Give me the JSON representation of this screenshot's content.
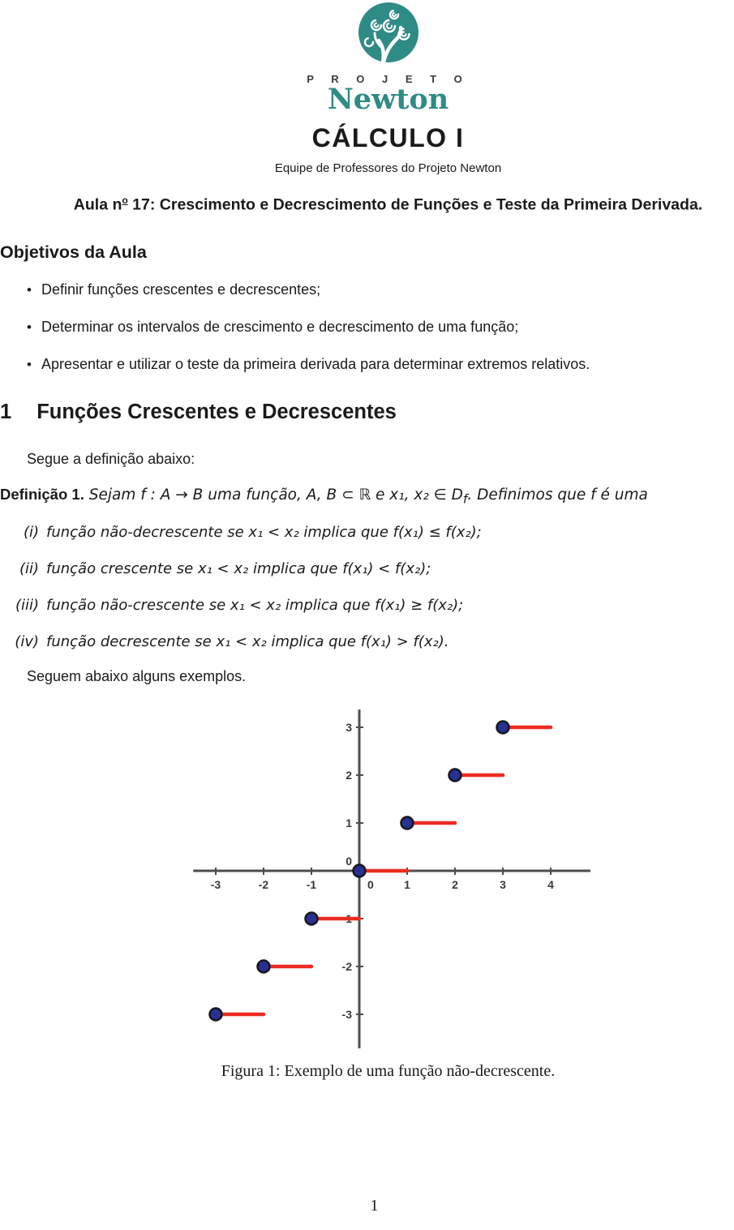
{
  "logo": {
    "projeto": "P R O J E T O",
    "newton": "Newton",
    "teal": "#2e8b85"
  },
  "header": {
    "title": "CÁLCULO I",
    "subtitle": "Equipe de Professores do Projeto Newton"
  },
  "lecture_line": {
    "prefix": "Aula n",
    "ordinal": "o",
    "rest": " 17: Crescimento e Decrescimento de Funções e Teste da Primeira Derivada."
  },
  "objectives": {
    "heading": "Objetivos da Aula",
    "items": [
      "Definir funções crescentes e decrescentes;",
      "Determinar os intervalos de crescimento e decrescimento de uma função;",
      "Apresentar e utilizar o teste da primeira derivada para determinar extremos relativos."
    ]
  },
  "section1": {
    "number": "1",
    "title": "Funções Crescentes e Decrescentes",
    "intro": "Segue a definição abaixo:",
    "definition": {
      "label": "Definição 1.",
      "part1": " Sejam f : A → B uma função, A, B ⊂ ℝ e x₁, x₂ ∈ D",
      "subscript": "f",
      "part2": ". Definimos que f é uma"
    },
    "items": [
      {
        "label": "(i)",
        "text": "função não-decrescente se x₁ < x₂ implica que f(x₁) ≤ f(x₂);"
      },
      {
        "label": "(ii)",
        "text": "função crescente se x₁ < x₂ implica que f(x₁) < f(x₂);"
      },
      {
        "label": "(iii)",
        "text": "função não-crescente se x₁ < x₂ implica que f(x₁) ≥ f(x₂);"
      },
      {
        "label": "(iv)",
        "text": "função decrescente se x₁ < x₂ implica que f(x₁) > f(x₂)."
      }
    ],
    "examples_line": "Seguem abaixo alguns exemplos."
  },
  "figure": {
    "caption": "Figura 1: Exemplo de uma função não-decrescente."
  },
  "page": {
    "number": "1"
  },
  "chart_data": {
    "type": "line",
    "title": "",
    "description": "Step (floor) function y = ⌊x⌋ — horizontal red segments with closed blue dot at the left endpoint of each step",
    "segments": [
      {
        "y": -3,
        "x_start": -3,
        "x_end": -2
      },
      {
        "y": -2,
        "x_start": -2,
        "x_end": -1
      },
      {
        "y": -1,
        "x_start": -1,
        "x_end": 0
      },
      {
        "y": 0,
        "x_start": 0,
        "x_end": 1
      },
      {
        "y": 1,
        "x_start": 1,
        "x_end": 2
      },
      {
        "y": 2,
        "x_start": 2,
        "x_end": 3
      },
      {
        "y": 3,
        "x_start": 3,
        "x_end": 4
      }
    ],
    "closed_endpoint": "start",
    "x_ticks": [
      -3,
      -2,
      -1,
      0,
      1,
      2,
      3,
      4
    ],
    "y_ticks": [
      -3,
      -2,
      -1,
      0,
      1,
      2,
      3
    ],
    "xlim": [
      -3.47,
      4.83
    ],
    "ylim": [
      -3.71,
      3.37
    ],
    "grid": false,
    "legend": null,
    "colors": {
      "segment": "#ed2b22",
      "point_fill": "#283091",
      "point_stroke": "#16161f",
      "axis": "#4d4d4d",
      "tick_label": "#3a3a3a"
    }
  }
}
